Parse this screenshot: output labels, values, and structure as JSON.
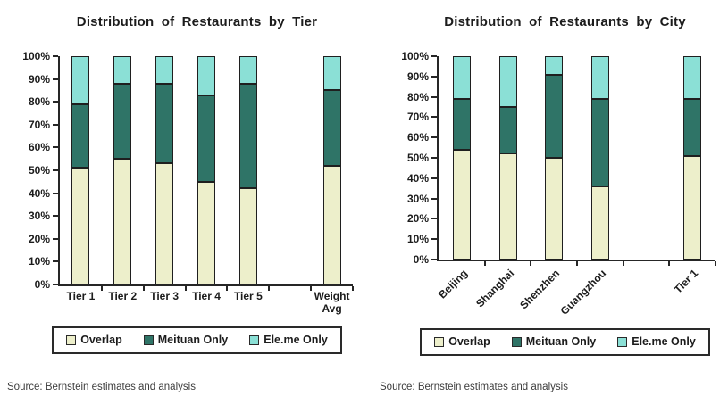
{
  "page": {
    "background": "#ffffff",
    "text_color": "#1c1c1c"
  },
  "colors": {
    "overlap": "#EDEFCB",
    "meituan_only": "#2F7467",
    "eleme_only": "#8BE0D6",
    "bar_border": "#1f1f1f",
    "axis": "#262626"
  },
  "chart_data": [
    {
      "type": "bar",
      "stacked": true,
      "units": "percent",
      "title": "Distribution of Restaurants by Tier",
      "categories": [
        "Tier 1",
        "Tier 2",
        "Tier 3",
        "Tier 4",
        "Tier 5",
        "Weight Avg"
      ],
      "gap_after_index": 4,
      "series": [
        {
          "name": "Overlap",
          "color": "#EDEFCB",
          "values": [
            51,
            55,
            53,
            45,
            42,
            52
          ]
        },
        {
          "name": "Meituan Only",
          "color": "#2F7467",
          "values": [
            28,
            33,
            35,
            38,
            46,
            33
          ]
        },
        {
          "name": "Ele.me Only",
          "color": "#8BE0D6",
          "values": [
            21,
            12,
            12,
            17,
            12,
            15
          ]
        }
      ],
      "ylim": [
        0,
        100
      ],
      "ytick_step": 10,
      "ytick_labels": [
        "0%",
        "10%",
        "20%",
        "30%",
        "40%",
        "50%",
        "60%",
        "70%",
        "80%",
        "90%",
        "100%"
      ],
      "grid": false,
      "legend_position": "bottom",
      "x_label_rotation": 0,
      "source": "Source: Bernstein estimates and analysis"
    },
    {
      "type": "bar",
      "stacked": true,
      "units": "percent",
      "title": "Distribution of Restaurants by City",
      "categories": [
        "Beijing",
        "Shanghai",
        "Shenzhen",
        "Guangzhou",
        "Tier 1"
      ],
      "gap_after_index": 3,
      "series": [
        {
          "name": "Overlap",
          "color": "#EDEFCB",
          "values": [
            54,
            52,
            50,
            36,
            51
          ]
        },
        {
          "name": "Meituan Only",
          "color": "#2F7467",
          "values": [
            25,
            23,
            41,
            43,
            28
          ]
        },
        {
          "name": "Ele.me Only",
          "color": "#8BE0D6",
          "values": [
            21,
            25,
            9,
            21,
            21
          ]
        }
      ],
      "ylim": [
        0,
        100
      ],
      "ytick_step": 10,
      "ytick_labels": [
        "0%",
        "10%",
        "20%",
        "30%",
        "40%",
        "50%",
        "60%",
        "70%",
        "80%",
        "90%",
        "100%"
      ],
      "grid": false,
      "legend_position": "bottom",
      "x_label_rotation": -45,
      "source": "Source: Bernstein estimates and analysis"
    }
  ]
}
